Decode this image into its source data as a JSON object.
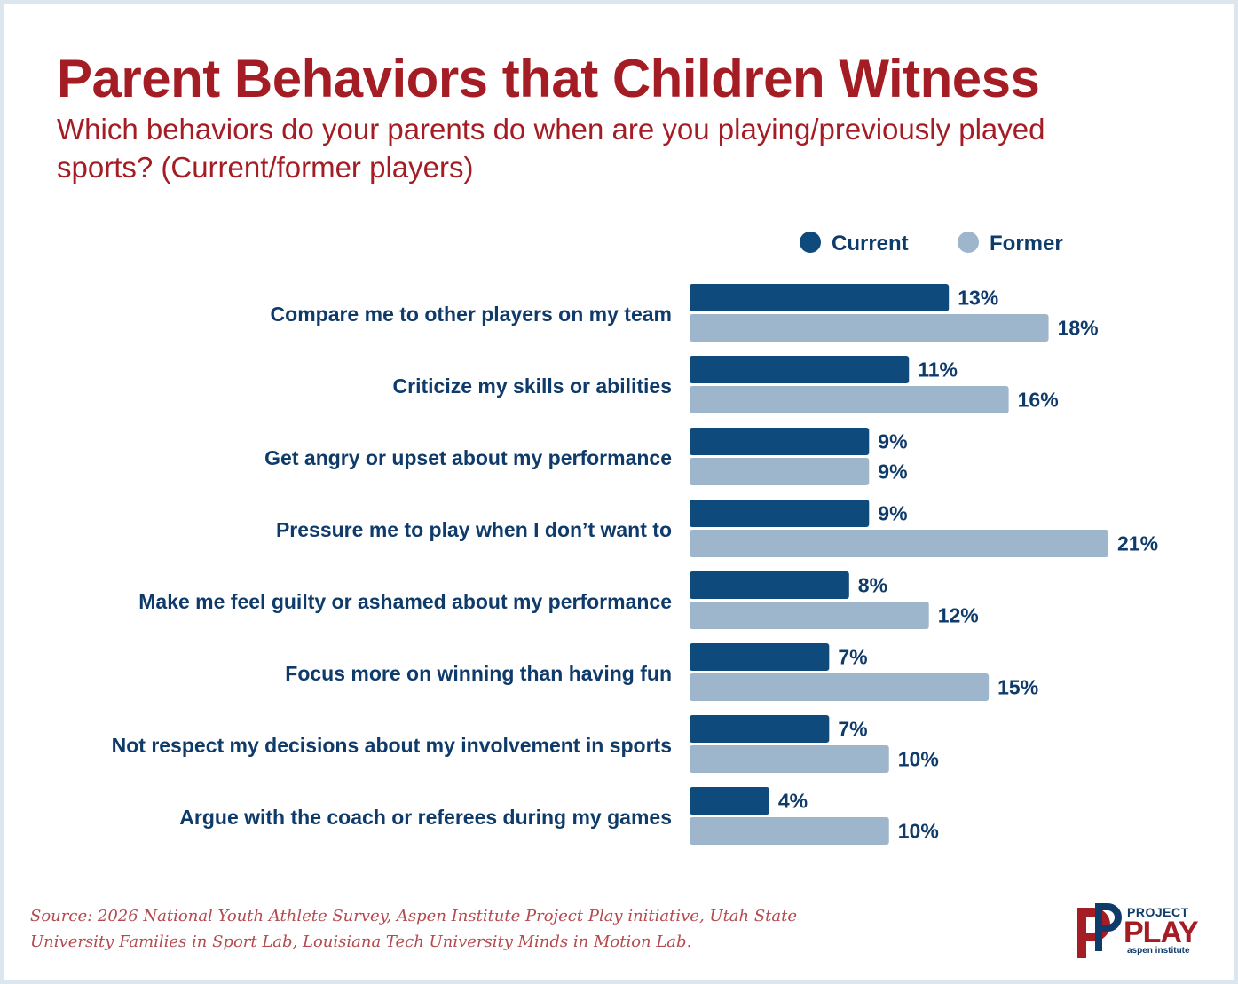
{
  "header": {
    "title": "Parent Behaviors that Children Witness",
    "subtitle": "Which behaviors do your parents do when are you playing/previously played sports? (Current/former players)"
  },
  "chart_data": {
    "type": "bar",
    "orientation": "horizontal",
    "categories": [
      "Compare me to other players on my team",
      "Criticize my skills or abilities",
      "Get angry or upset about my performance",
      "Pressure me to play when I don’t want to",
      "Make me feel guilty or ashamed about my performance",
      "Focus more on winning than having fun",
      "Not respect my decisions about my involvement in sports",
      "Argue with the coach or referees during my games"
    ],
    "series": [
      {
        "name": "Current",
        "color": "#0f4a7c",
        "values": [
          13,
          11,
          9,
          9,
          8,
          7,
          7,
          4
        ]
      },
      {
        "name": "Former",
        "color": "#9db6cc",
        "values": [
          18,
          16,
          9,
          21,
          12,
          15,
          10,
          10
        ]
      }
    ],
    "value_suffix": "%",
    "legend": "top-right",
    "xlim": [
      0,
      21
    ],
    "label_color": "#0f3b6b"
  },
  "footer": {
    "source": "Source: 2026 National Youth Athlete Survey, Aspen Institute Project Play initiative, Utah State University Families in Sport Lab, Louisiana Tech University Minds in Motion Lab."
  },
  "logo": {
    "line1": "PROJECT",
    "line2": "PLAY",
    "line3": "aspen institute"
  }
}
